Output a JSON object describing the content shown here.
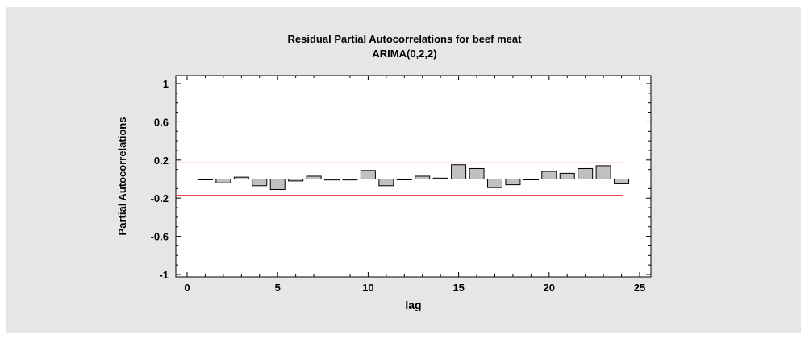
{
  "chart_data": {
    "type": "bar",
    "title": "Residual Partial Autocorrelations for beef meat",
    "subtitle": "ARIMA(0,2,2)",
    "xlabel": "lag",
    "ylabel": "Partial Autocorrelations",
    "xlim": [
      0,
      25
    ],
    "ylim": [
      -1.05,
      1.05
    ],
    "xticks": [
      "0",
      "5",
      "10",
      "15",
      "20",
      "25"
    ],
    "yticks": [
      "1",
      "0.6",
      "0.2",
      "-0.2",
      "-0.6",
      "-1"
    ],
    "x": [
      1,
      2,
      3,
      4,
      5,
      6,
      7,
      8,
      9,
      10,
      11,
      12,
      13,
      14,
      15,
      16,
      17,
      18,
      19,
      20,
      21,
      22,
      23,
      24
    ],
    "values": [
      0.0,
      -0.04,
      0.02,
      -0.07,
      -0.11,
      -0.02,
      0.03,
      -0.01,
      -0.01,
      0.09,
      -0.07,
      0.0,
      0.03,
      0.01,
      0.15,
      0.11,
      -0.09,
      -0.06,
      0.0,
      0.08,
      0.06,
      0.11,
      0.14,
      -0.05
    ],
    "limits": [
      0.17,
      -0.17
    ],
    "colors": {
      "bar_fill": "#c0c0c0",
      "bar_stroke": "#000000",
      "limit_line": "#e03030",
      "background": "#e6e6e6",
      "plot_area": "#ffffff"
    },
    "grid": false,
    "legend": "none"
  }
}
